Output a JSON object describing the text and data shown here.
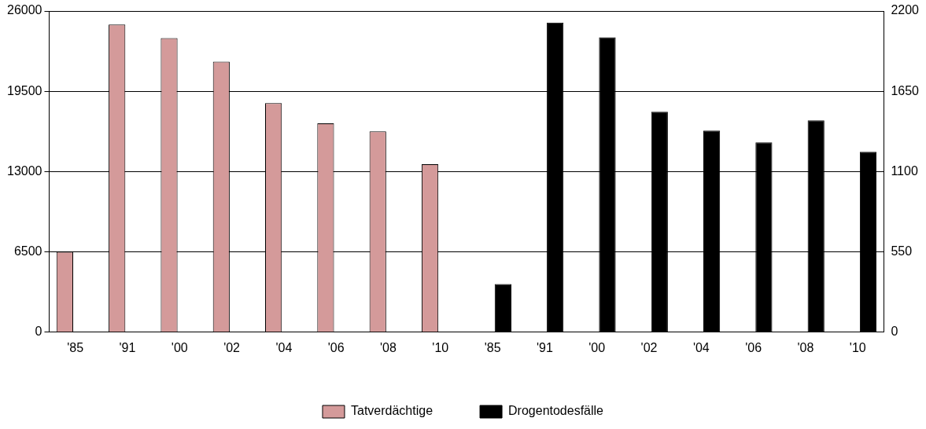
{
  "chart_data": {
    "type": "bar",
    "categories": [
      "'85",
      "'91",
      "'00",
      "'02",
      "'04",
      "'06",
      "'08",
      "'10",
      "'85",
      "'91",
      "'00",
      "'02",
      "'04",
      "'06",
      "'08",
      "'10"
    ],
    "series": [
      {
        "name": "Tatverdächtige",
        "color": "#d49a9a",
        "values": [
          6500,
          24900,
          23800,
          21900,
          18550,
          16900,
          16250,
          13600,
          0,
          0,
          0,
          0,
          0,
          0,
          0,
          0
        ]
      },
      {
        "name": "Drogentodesfälle",
        "color": "#000000",
        "axis": "y2",
        "values": [
          0,
          0,
          0,
          0,
          0,
          0,
          0,
          0,
          330,
          2120,
          2020,
          1510,
          1380,
          1300,
          1450,
          1235
        ]
      }
    ],
    "ylim": [
      0,
      26000
    ],
    "yticks": [
      0,
      6500,
      13000,
      19500,
      26000
    ],
    "y2lim": [
      0,
      2200
    ],
    "y2ticks": [
      0,
      550,
      1100,
      1650,
      2200
    ],
    "grid": "y",
    "legend": "bottom"
  }
}
